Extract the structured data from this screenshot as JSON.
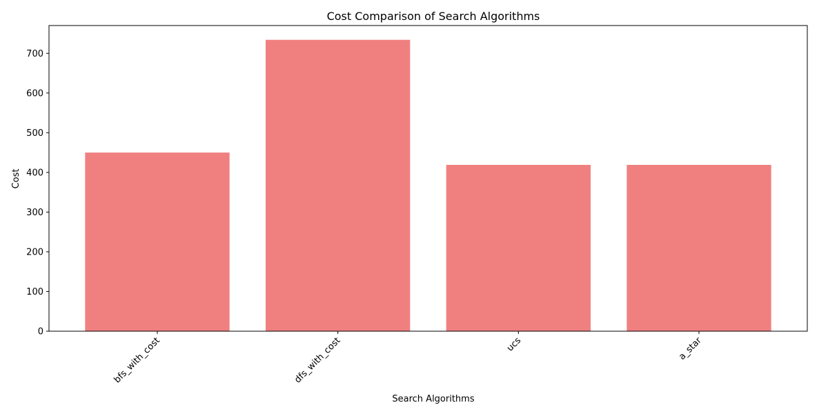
{
  "chart_data": {
    "type": "bar",
    "title": "Cost Comparison of Search Algorithms",
    "xlabel": "Search Algorithms",
    "ylabel": "Cost",
    "categories": [
      "bfs_with_cost",
      "dfs_with_cost",
      "ucs",
      "a_star"
    ],
    "values": [
      450,
      734,
      419,
      419
    ],
    "ylim": [
      0,
      770
    ],
    "yticks": [
      0,
      100,
      200,
      300,
      400,
      500,
      600,
      700
    ],
    "x_tick_rotation_deg": 45,
    "grid": false,
    "legend": "none",
    "bar_color": "#f08080"
  }
}
